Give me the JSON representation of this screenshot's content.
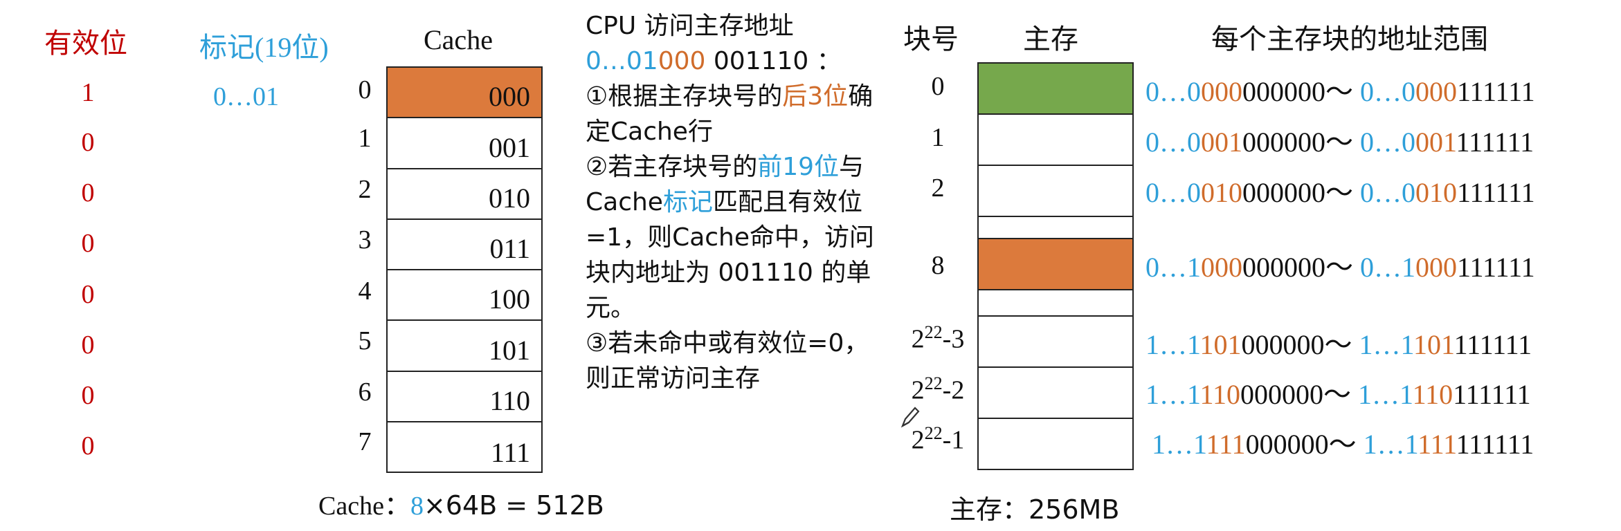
{
  "headers": {
    "valid": "有效位",
    "tag": "标记(19位)",
    "cache": "Cache",
    "block_no": "块号",
    "main_mem": "主存",
    "addr_range": "每个主存块的地址范围"
  },
  "valid_bits": [
    "1",
    "0",
    "0",
    "0",
    "0",
    "0",
    "0",
    "0"
  ],
  "tag_value": "0…01",
  "cache_lines": [
    {
      "index": "0",
      "label": "000"
    },
    {
      "index": "1",
      "label": "001"
    },
    {
      "index": "2",
      "label": "010"
    },
    {
      "index": "3",
      "label": "011"
    },
    {
      "index": "4",
      "label": "100"
    },
    {
      "index": "5",
      "label": "101"
    },
    {
      "index": "6",
      "label": "110"
    },
    {
      "index": "7",
      "label": "111"
    }
  ],
  "cache_caption": {
    "prefix": "Cache：",
    "lines": "8",
    "rest": "×64B = 512B"
  },
  "explanation": {
    "title": "CPU 访问主存地址",
    "addr_tag": "0…01",
    "addr_index": "000",
    "addr_offset": " 001110 ：",
    "s1_a": "①根据主存块号的",
    "s1_b": "后3位",
    "s1_c": "确定Cache行",
    "s2_a": "②若主存块号的",
    "s2_b": "前19位",
    "s2_c": "与Cache",
    "s2_d": "标记",
    "s2_e": "匹配且有效位=1，则Cache命中，访问块内地址为 001110 的单元。",
    "s3": "③若未命中或有效位=0，则正常访问主存"
  },
  "memory_blocks": [
    {
      "no": "0",
      "tag": "0…0",
      "idx": "000",
      "lo": "000000～",
      "tag2": "0…0",
      "idx2": "000",
      "hi": "111111"
    },
    {
      "no": "1",
      "tag": "0…0",
      "idx": "001",
      "lo": "000000～",
      "tag2": "0…0",
      "idx2": "001",
      "hi": "111111"
    },
    {
      "no": "2",
      "tag": "0…0",
      "idx": "010",
      "lo": "000000～",
      "tag2": "0…0",
      "idx2": "010",
      "hi": "111111"
    },
    {
      "no": "8",
      "tag": "0…1",
      "idx": "000",
      "lo": "000000～",
      "tag2": "0…1",
      "idx2": "000",
      "hi": "111111"
    },
    {
      "no_base": "2",
      "no_exp": "22",
      "no_tail": "-3",
      "tag": "1…1",
      "idx": "101",
      "lo": "000000～",
      "tag2": "1…1",
      "idx2": "101",
      "hi": "111111"
    },
    {
      "no_base": "2",
      "no_exp": "22",
      "no_tail": "-2",
      "tag": "1…1",
      "idx": "110",
      "lo": "000000～",
      "tag2": "1…1",
      "idx2": "110",
      "hi": "111111"
    },
    {
      "no_base": "2",
      "no_exp": "22",
      "no_tail": "-1",
      "tag": "1…1",
      "idx": "111",
      "lo": "000000～",
      "tag2": "1…1",
      "idx2": "111",
      "hi": "111111"
    }
  ],
  "mem_caption": "主存：256MB",
  "colors": {
    "valid": "#c00000",
    "tag": "#2e9fd9",
    "index": "#d06c2b",
    "hit_fill": "#dc7a3c",
    "block0_fill": "#76a84c"
  }
}
